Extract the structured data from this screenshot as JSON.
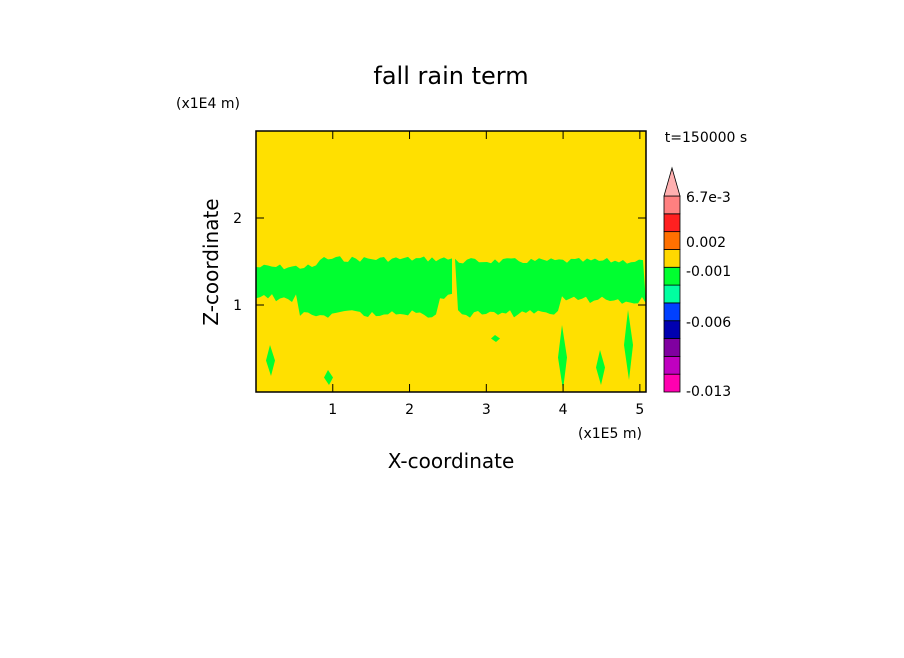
{
  "chart_data": {
    "type": "contour",
    "title": "fall rain term",
    "x_label": "X-coordinate",
    "y_label": "Z-coordinate",
    "x_unit": "(x1E5 m)",
    "y_unit": "(x1E4 m)",
    "annotation": "t=150000 s",
    "xlim": [
      0,
      5.08
    ],
    "xticks": [
      1,
      2,
      3,
      4,
      5
    ],
    "ylim": [
      0,
      3
    ],
    "yticks": [
      1,
      2
    ],
    "field_color": "#ffe000",
    "feature_color": "#00ff30",
    "colorbar": {
      "colors": [
        "#ff00b0",
        "#c000c0",
        "#8000a0",
        "#0000b0",
        "#0040ff",
        "#00ffa0",
        "#00ff30",
        "#ffd800",
        "#ff7000",
        "#ff2020",
        "#ff8080"
      ],
      "extend_color": "#ffb0b0",
      "ticks": [
        {
          "value": 0.0067,
          "label": "6.7e-3"
        },
        0.002,
        -0.001,
        -0.006,
        -0.013
      ]
    }
  }
}
